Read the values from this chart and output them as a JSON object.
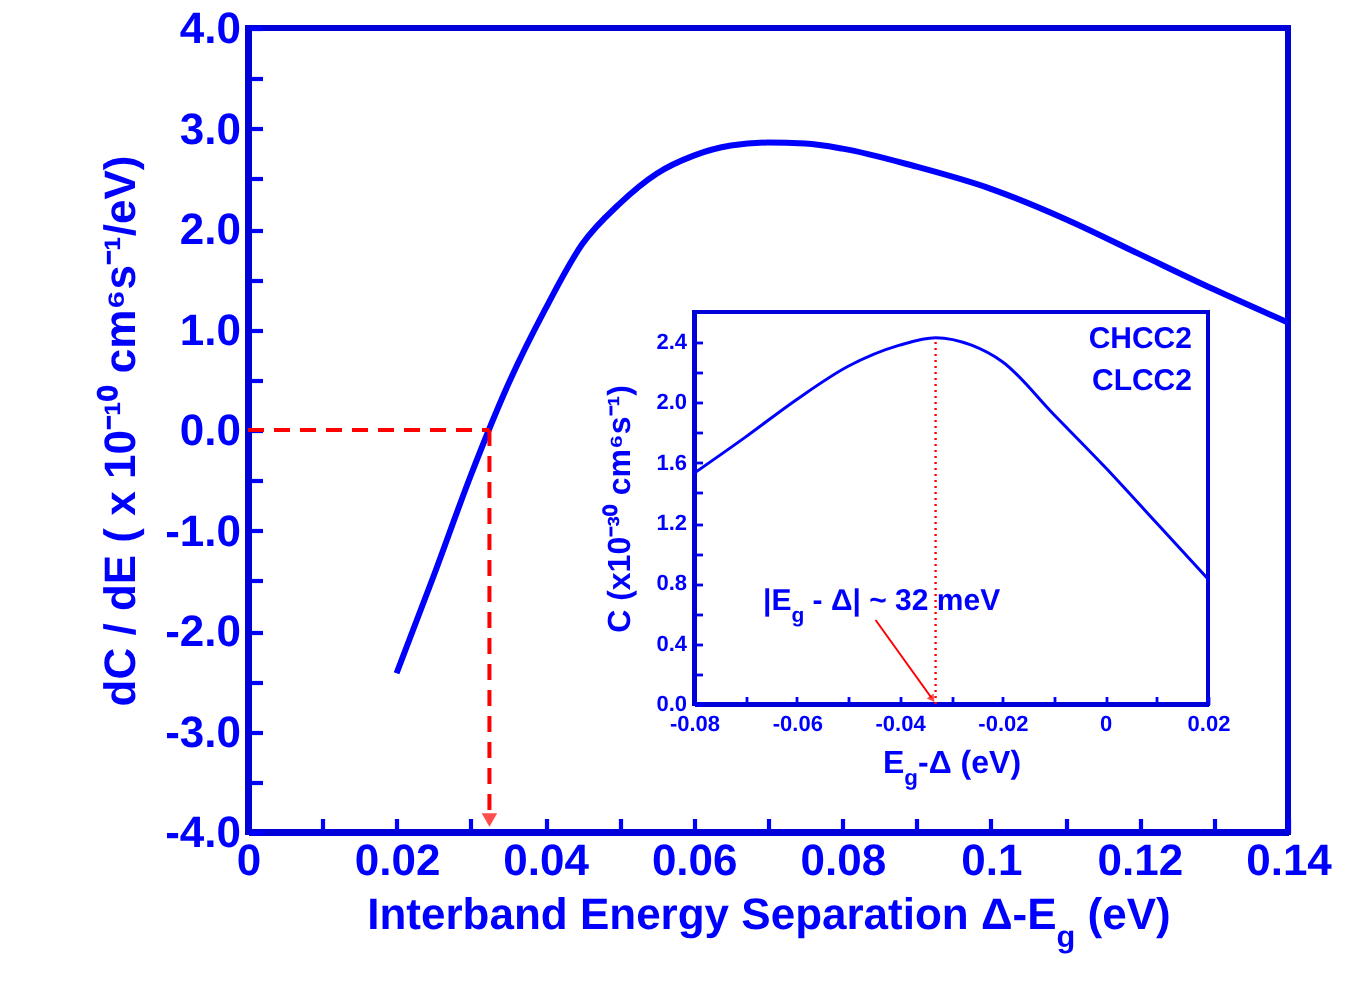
{
  "chart_data": [
    {
      "type": "line",
      "xlabel": "Interband Energy Separation  Δ-E$_{g}$ (eV)",
      "ylabel": "dC / dE ( x 10⁻¹⁰ cm⁶s⁻¹/eV)",
      "xlim": [
        0,
        0.14
      ],
      "ylim": [
        -4,
        4
      ],
      "xticks": [
        0,
        {
          "value": 0.01,
          "label": null
        },
        0.02,
        {
          "value": 0.03,
          "label": null
        },
        0.04,
        {
          "value": 0.05,
          "label": null
        },
        0.06,
        {
          "value": 0.07,
          "label": null
        },
        0.08,
        {
          "value": 0.09,
          "label": null
        },
        0.1,
        {
          "value": 0.11,
          "label": null
        },
        0.12,
        {
          "value": 0.13,
          "label": null
        },
        0.14
      ],
      "yticks": [
        {
          "value": -4,
          "label": "-4.0"
        },
        {
          "value": -3.5,
          "label": null
        },
        {
          "value": -3,
          "label": "-3.0"
        },
        {
          "value": -2.5,
          "label": null
        },
        {
          "value": -2,
          "label": "-2.0"
        },
        {
          "value": -1.5,
          "label": null
        },
        {
          "value": -1,
          "label": "-1.0"
        },
        {
          "value": -0.5,
          "label": null
        },
        {
          "value": 0,
          "label": "0.0"
        },
        {
          "value": 0.5,
          "label": null
        },
        {
          "value": 1,
          "label": "1.0"
        },
        {
          "value": 1.5,
          "label": null
        },
        {
          "value": 2,
          "label": "2.0"
        },
        {
          "value": 2.5,
          "label": null
        },
        {
          "value": 3,
          "label": "3.0"
        },
        {
          "value": 3.5,
          "label": null
        },
        {
          "value": 4,
          "label": "4.0"
        }
      ],
      "series": [
        {
          "color": "#0000ff",
          "x": [
            0.02,
            0.025,
            0.03,
            0.035,
            0.04,
            0.045,
            0.05,
            0.055,
            0.06,
            0.065,
            0.07,
            0.075,
            0.08,
            0.09,
            0.1,
            0.11,
            0.12,
            0.13,
            0.14
          ],
          "values": [
            -2.42,
            -1.45,
            -0.45,
            0.45,
            1.2,
            1.85,
            2.25,
            2.55,
            2.73,
            2.83,
            2.86,
            2.85,
            2.8,
            2.62,
            2.4,
            2.1,
            1.75,
            1.4,
            1.07
          ]
        }
      ]
    },
    {
      "type": "line",
      "xlabel": "E$_{g}$-Δ (eV)",
      "ylabel": "C  (x10⁻³⁰ cm⁶s⁻¹)",
      "xlim": [
        -0.08,
        0.02
      ],
      "ylim": [
        0,
        2.6
      ],
      "xticks": [
        -0.08,
        {
          "value": -0.07,
          "label": null
        },
        -0.06,
        {
          "value": -0.05,
          "label": null
        },
        -0.04,
        {
          "value": -0.03,
          "label": null
        },
        -0.02,
        {
          "value": -0.01,
          "label": null
        },
        0,
        {
          "value": 0.01,
          "label": null
        },
        0.02
      ],
      "yticks": [
        {
          "value": 0,
          "label": "0.0"
        },
        {
          "value": 0.2,
          "label": null
        },
        0.4,
        {
          "value": 0.6,
          "label": null
        },
        0.8,
        {
          "value": 1,
          "label": null
        },
        1.2,
        {
          "value": 1.4,
          "label": null
        },
        1.6,
        {
          "value": 1.8,
          "label": null
        },
        {
          "value": 2,
          "label": "2.0"
        },
        {
          "value": 2.2,
          "label": null
        },
        2.4
      ],
      "series": [
        {
          "color": "#0000ff",
          "x": [
            -0.08,
            -0.07,
            -0.06,
            -0.05,
            -0.04,
            -0.033,
            -0.026,
            -0.02,
            -0.01,
            0,
            0.01,
            0.02
          ],
          "values": [
            1.53,
            1.77,
            2.02,
            2.24,
            2.38,
            2.43,
            2.38,
            2.27,
            1.92,
            1.57,
            1.2,
            0.83
          ]
        },
        {
          "color": "#ff0000",
          "line_style": "dotted",
          "x": [
            -0.033,
            -0.033
          ],
          "values": [
            0,
            2.43
          ]
        }
      ],
      "annotations": [
        "CHCC2",
        "CLCC2",
        {
          "text": "|E$_{g}$ - Δ| ~ 32 meV",
          "x": -0.033,
          "y": 0
        }
      ]
    }
  ]
}
